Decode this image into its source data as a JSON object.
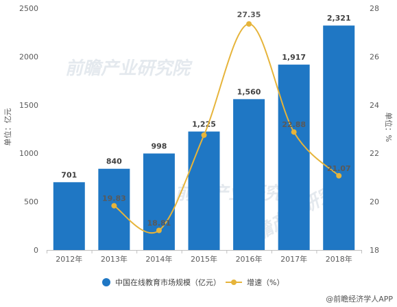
{
  "chart_data": {
    "type": "bar",
    "categories": [
      "2012年",
      "2013年",
      "2014年",
      "2015年",
      "2016年",
      "2017年",
      "2018年"
    ],
    "series": [
      {
        "name": "中国在线教育市场规模（亿元）",
        "type": "bar",
        "axis": "left",
        "color": "#1f77c4",
        "values": [
          701,
          840,
          998,
          1225,
          1560,
          1917,
          2321
        ],
        "labels": [
          "701",
          "840",
          "998",
          "1,225",
          "1,560",
          "1,917",
          "2,321"
        ]
      },
      {
        "name": "增速（%）",
        "type": "line",
        "axis": "right",
        "color": "#e6b43a",
        "values": [
          null,
          19.83,
          18.81,
          22.75,
          27.35,
          22.88,
          21.07
        ],
        "labels": [
          "",
          "19.83",
          "18.81",
          "",
          "27.35",
          "22.88",
          "21.07"
        ]
      }
    ],
    "ylabel": "单位：亿元",
    "y2label": "单位：%",
    "ylim": [
      0,
      2500
    ],
    "yticks": [
      0,
      500,
      1000,
      1500,
      2000,
      2500
    ],
    "y2lim": [
      18,
      28
    ],
    "y2ticks": [
      18,
      20,
      22,
      24,
      26,
      28
    ],
    "legend_position": "bottom",
    "grid": false
  },
  "watermark": {
    "text": "前瞻产业研究院"
  },
  "credit": "@前瞻经济学人APP"
}
